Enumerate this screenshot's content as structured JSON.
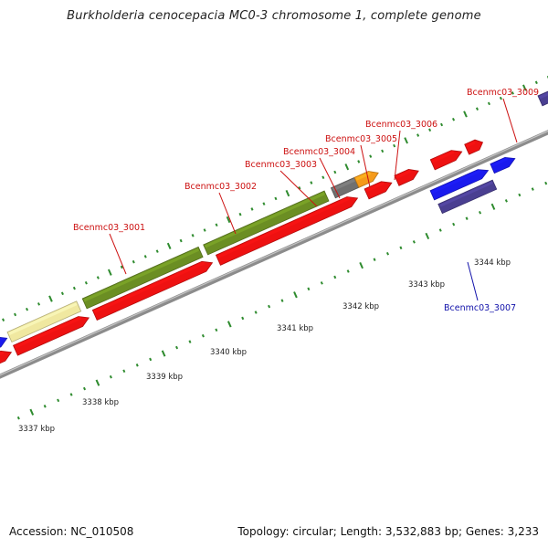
{
  "title": "Burkholderia cenocepacia MC0-3 chromosome 1, complete genome",
  "footer": {
    "accession": "Accession: NC_010508",
    "topology": "Topology: circular; Length: 3,532,883 bp; Genes: 3,233"
  },
  "colors": {
    "backbone": "#8c8c8c",
    "tick": "#2e8b2e",
    "cds": "#ee1111",
    "gene_forward": "#1a1aee",
    "gene_reverse": "#4a3f91",
    "green_feature": "#6b8e23",
    "pale_feature": "#f0e8a0",
    "gray_feature": "#707070",
    "orange_feature": "#f59a1a",
    "label_red": "#cc1111",
    "label_blue": "#1111aa"
  },
  "scale": {
    "ticks": [
      "3337 kbp",
      "3338 kbp",
      "3339 kbp",
      "3340 kbp",
      "3341 kbp",
      "3342 kbp",
      "3343 kbp",
      "3344 kbp"
    ]
  },
  "genes": [
    {
      "label": "Bcenmc03_3001",
      "color": "label_red"
    },
    {
      "label": "Bcenmc03_3002",
      "color": "label_red"
    },
    {
      "label": "Bcenmc03_3003",
      "color": "label_red"
    },
    {
      "label": "Bcenmc03_3004",
      "color": "label_red"
    },
    {
      "label": "Bcenmc03_3005",
      "color": "label_red"
    },
    {
      "label": "Bcenmc03_3006",
      "color": "label_red"
    },
    {
      "label": "Bcenmc03_3007",
      "color": "label_blue"
    },
    {
      "label": "Bcenmc03_3009",
      "color": "label_red"
    }
  ]
}
